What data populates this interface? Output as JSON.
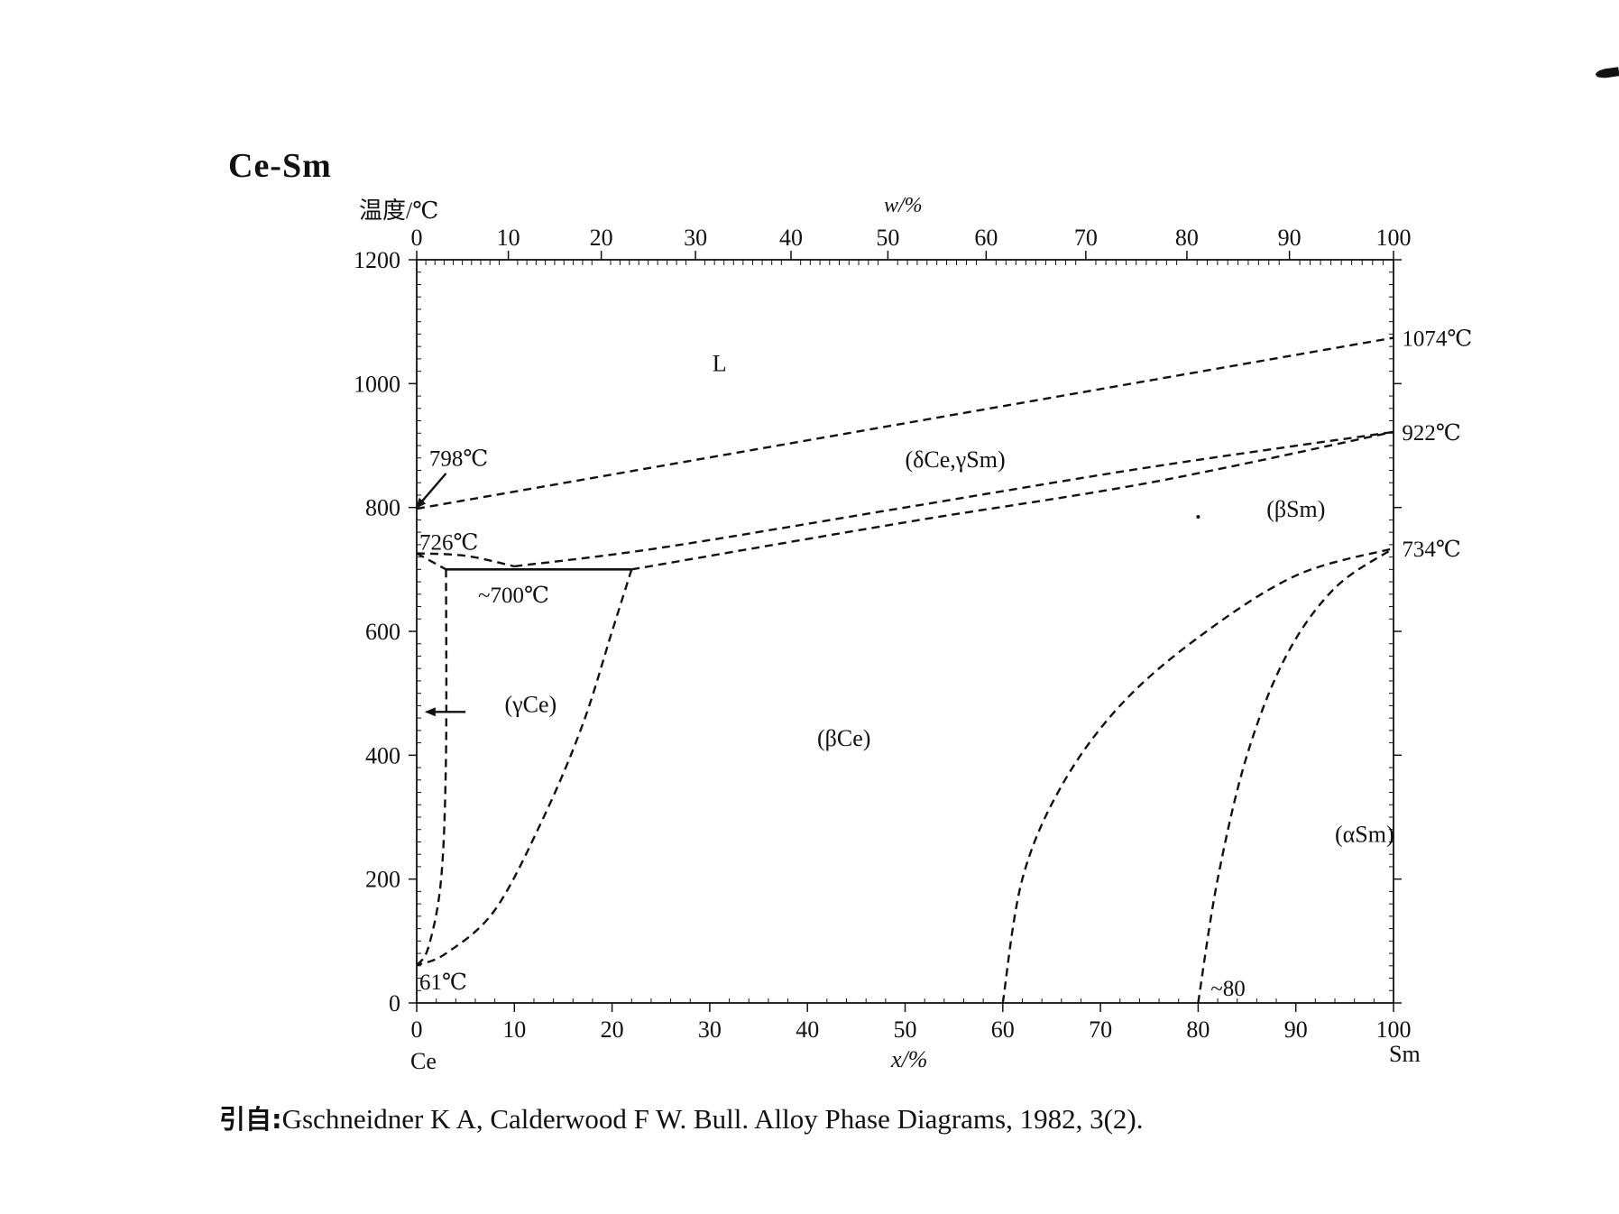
{
  "title": "Ce-Sm",
  "citation": {
    "prefix": "引自:",
    "text": "Gschneidner K A, Calderwood F W. Bull. Alloy Phase Diagrams, 1982, 3(2)."
  },
  "chart_data": {
    "type": "phase-diagram",
    "title": "Ce-Sm",
    "ylabel": "温度/℃",
    "xlabel_bottom": "x/%",
    "xlabel_top": "w/%",
    "ylim": [
      0,
      1200
    ],
    "xlim": [
      0,
      100
    ],
    "y_ticks": [
      0,
      200,
      400,
      600,
      800,
      1000,
      1200
    ],
    "x_ticks": [
      0,
      10,
      20,
      30,
      40,
      50,
      60,
      70,
      80,
      90,
      100
    ],
    "top_ticks": [
      0,
      10,
      20,
      30,
      40,
      50,
      60,
      70,
      80,
      90,
      100
    ],
    "left_element": "Ce",
    "right_element": "Sm",
    "grid": false,
    "phase_labels": [
      {
        "text": "L",
        "x": 31,
        "y": 1020
      },
      {
        "text": "(δCe,γSm)",
        "x": 50,
        "y": 865
      },
      {
        "text": "(βSm)",
        "x": 87,
        "y": 785
      },
      {
        "text": "(βCe)",
        "x": 41,
        "y": 415
      },
      {
        "text": "(γCe)",
        "x": 9,
        "y": 470
      },
      {
        "text": "(αSm)",
        "x": 94,
        "y": 260
      }
    ],
    "annotations": [
      {
        "text": "798℃",
        "x": 1,
        "y": 880
      },
      {
        "text": "726℃",
        "x": 0,
        "y": 745
      },
      {
        "text": "~700℃",
        "x": 6,
        "y": 660
      },
      {
        "text": "61℃",
        "x": 0,
        "y": 35
      },
      {
        "text": "1074℃",
        "x": 100.5,
        "y": 1074
      },
      {
        "text": "922℃",
        "x": 100.5,
        "y": 922
      },
      {
        "text": "734℃",
        "x": 100.5,
        "y": 734
      },
      {
        "text": "~80",
        "x": 81,
        "y": 25
      }
    ],
    "lines": [
      {
        "name": "liquidus",
        "style": "dashed",
        "points": [
          [
            0,
            798
          ],
          [
            100,
            1074
          ]
        ]
      },
      {
        "name": "solidus",
        "style": "dashed",
        "points": [
          [
            10,
            705
          ],
          [
            25,
            735
          ],
          [
            50,
            800
          ],
          [
            75,
            865
          ],
          [
            100,
            922
          ]
        ]
      },
      {
        "name": "betaSm-upper",
        "style": "dashed",
        "points": [
          [
            22,
            700
          ],
          [
            50,
            776
          ],
          [
            75,
            840
          ],
          [
            100,
            922
          ]
        ]
      },
      {
        "name": "gammaCe-top-left",
        "style": "dashed",
        "points": [
          [
            0,
            726
          ],
          [
            3,
            700
          ]
        ]
      },
      {
        "name": "gammaCe-dome",
        "style": "dashed",
        "points": [
          [
            0,
            726
          ],
          [
            5,
            722
          ],
          [
            10,
            705
          ]
        ]
      },
      {
        "name": "eutectoid",
        "style": "solid",
        "points": [
          [
            3,
            700
          ],
          [
            22,
            700
          ]
        ]
      },
      {
        "name": "gammaCe-solvus",
        "style": "dashed",
        "points": [
          [
            3,
            700
          ],
          [
            3,
            400
          ],
          [
            2.5,
            200
          ],
          [
            1.2,
            90
          ],
          [
            0,
            61
          ]
        ]
      },
      {
        "name": "betaCe-solvus",
        "style": "dashed",
        "points": [
          [
            22,
            700
          ],
          [
            20,
            600
          ],
          [
            17,
            450
          ],
          [
            13,
            300
          ],
          [
            8,
            150
          ],
          [
            3,
            80
          ],
          [
            0,
            61
          ]
        ]
      },
      {
        "name": "alphaSm-boundary-left",
        "style": "dashed",
        "points": [
          [
            60,
            0
          ],
          [
            62,
            200
          ],
          [
            66,
            350
          ],
          [
            72,
            480
          ],
          [
            80,
            590
          ],
          [
            90,
            690
          ],
          [
            100,
            734
          ]
        ]
      },
      {
        "name": "alphaSm-boundary-right",
        "style": "dashed",
        "points": [
          [
            80,
            0
          ],
          [
            82,
            200
          ],
          [
            85,
            400
          ],
          [
            89,
            560
          ],
          [
            94,
            670
          ],
          [
            100,
            734
          ]
        ]
      }
    ],
    "arrows": [
      {
        "name": "arrow-798",
        "points": [
          [
            3,
            855
          ],
          [
            0,
            800
          ]
        ]
      },
      {
        "name": "arrow-gammaCe",
        "points": [
          [
            5,
            470
          ],
          [
            1,
            470
          ]
        ]
      }
    ],
    "point_marks": [
      {
        "x": 80,
        "y": 785
      }
    ]
  }
}
